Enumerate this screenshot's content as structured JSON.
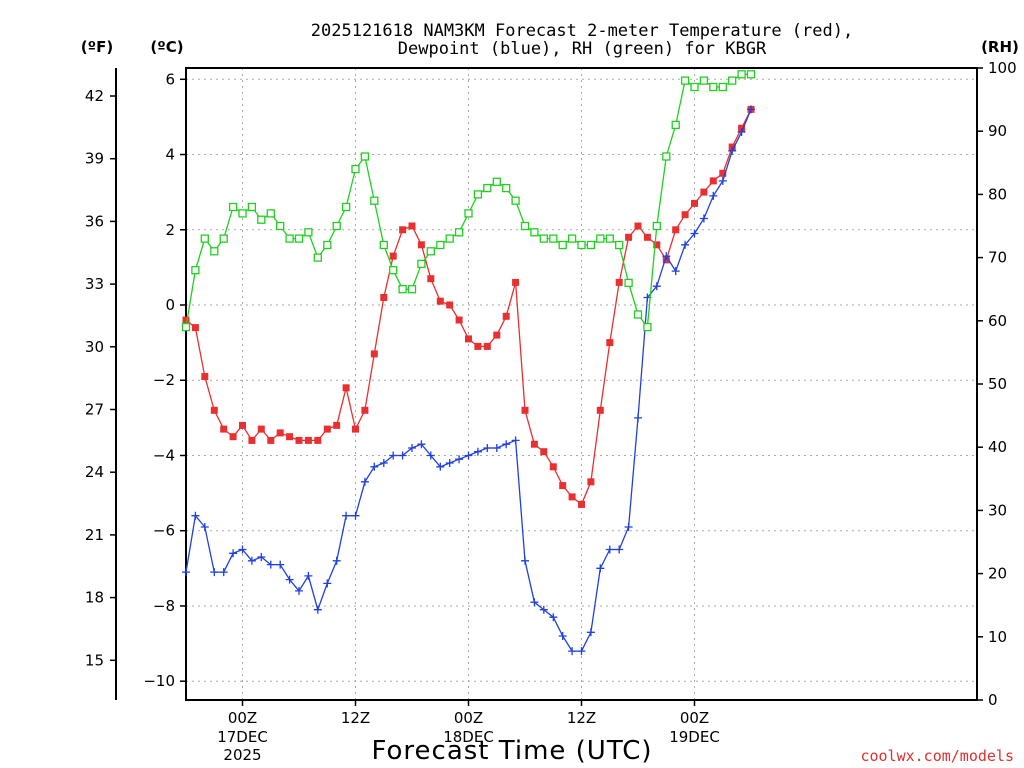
{
  "chart_data": {
    "type": "line",
    "title_line1": "2025121618 NAM3KM Forecast 2-meter Temperature (red),",
    "title_line2": "Dewpoint (blue), RH (green) for KBGR",
    "xlabel": "Forecast Time (UTC)",
    "credit": "coolwx.com/models",
    "units": {
      "fahrenheit": "(ºF)",
      "celsius": "(ºC)",
      "rh": "(RH)"
    },
    "forecast_hours": [
      0,
      84
    ],
    "celsius_axis": {
      "range": [
        -10.5,
        6.3
      ],
      "ticks": [
        "6",
        "4",
        "2",
        "0",
        "−2",
        "−4",
        "−6",
        "−8",
        "−10"
      ],
      "tick_values": [
        6,
        4,
        2,
        0,
        -2,
        -4,
        -6,
        -8,
        -10
      ]
    },
    "fahrenheit_axis": {
      "ticks": [
        "42",
        "39",
        "36",
        "33",
        "30",
        "27",
        "24",
        "21",
        "18",
        "15"
      ],
      "tick_values": [
        42,
        39,
        36,
        33,
        30,
        27,
        24,
        21,
        18,
        15
      ]
    },
    "rh_axis": {
      "range": [
        0,
        100
      ],
      "ticks": [
        "100",
        "90",
        "80",
        "70",
        "60",
        "50",
        "40",
        "30",
        "20",
        "10",
        "0"
      ],
      "tick_values": [
        100,
        90,
        80,
        70,
        60,
        50,
        40,
        30,
        20,
        10,
        0
      ]
    },
    "x_ticks": [
      {
        "hour": 6,
        "label1": "00Z",
        "label2": "17DEC",
        "label3": "2025"
      },
      {
        "hour": 18,
        "label1": "12Z",
        "label2": "",
        "label3": ""
      },
      {
        "hour": 30,
        "label1": "00Z",
        "label2": "18DEC",
        "label3": ""
      },
      {
        "hour": 42,
        "label1": "12Z",
        "label2": "",
        "label3": ""
      },
      {
        "hour": 54,
        "label1": "00Z",
        "label2": "19DEC",
        "label3": ""
      }
    ],
    "series": [
      {
        "name": "2-meter Temperature",
        "unit": "°C",
        "color": "#e83030",
        "marker": "filled-square",
        "x": [
          0,
          1,
          2,
          3,
          4,
          5,
          6,
          7,
          8,
          9,
          10,
          11,
          12,
          13,
          14,
          15,
          16,
          17,
          18,
          19,
          20,
          21,
          22,
          23,
          24,
          25,
          26,
          27,
          28,
          29,
          30,
          31,
          32,
          33,
          34,
          35,
          36,
          37,
          38,
          39,
          40,
          41,
          42,
          43,
          44,
          45,
          46,
          47,
          48,
          49,
          50,
          51,
          52,
          53,
          54,
          55,
          56,
          57,
          58,
          59,
          60
        ],
        "values": [
          -0.4,
          -0.6,
          -1.9,
          -2.8,
          -3.3,
          -3.5,
          -3.2,
          -3.6,
          -3.3,
          -3.6,
          -3.4,
          -3.5,
          -3.6,
          -3.6,
          -3.6,
          -3.3,
          -3.2,
          -2.2,
          -3.3,
          -2.8,
          -1.3,
          0.2,
          1.3,
          2.0,
          2.1,
          1.6,
          0.7,
          0.1,
          0.0,
          -0.4,
          -0.9,
          -1.1,
          -1.1,
          -0.8,
          -0.3,
          0.6,
          -2.8,
          -3.7,
          -3.9,
          -4.3,
          -4.8,
          -5.1,
          -5.3,
          -4.7,
          -2.8,
          -1.0,
          0.6,
          1.8,
          2.1,
          1.8,
          1.6,
          1.2,
          2.0,
          2.4,
          2.7,
          3.0,
          3.3,
          3.5,
          4.2,
          4.7,
          5.2
        ]
      },
      {
        "name": "Dewpoint",
        "unit": "°C",
        "color": "#2040e0",
        "marker": "plus",
        "x": [
          0,
          1,
          2,
          3,
          4,
          5,
          6,
          7,
          8,
          9,
          10,
          11,
          12,
          13,
          14,
          15,
          16,
          17,
          18,
          19,
          20,
          21,
          22,
          23,
          24,
          25,
          26,
          27,
          28,
          29,
          30,
          31,
          32,
          33,
          34,
          35,
          36,
          37,
          38,
          39,
          40,
          41,
          42,
          43,
          44,
          45,
          46,
          47,
          48,
          49,
          50,
          51,
          52,
          53,
          54,
          55,
          56,
          57,
          58,
          59,
          60
        ],
        "values": [
          -7.1,
          -5.6,
          -5.9,
          -7.1,
          -7.1,
          -6.6,
          -6.5,
          -6.8,
          -6.7,
          -6.9,
          -6.9,
          -7.3,
          -7.6,
          -7.2,
          -8.1,
          -7.4,
          -6.8,
          -5.6,
          -5.6,
          -4.7,
          -4.3,
          -4.2,
          -4.0,
          -4.0,
          -3.8,
          -3.7,
          -4.0,
          -4.3,
          -4.2,
          -4.1,
          -4.0,
          -3.9,
          -3.8,
          -3.8,
          -3.7,
          -3.6,
          -6.8,
          -7.9,
          -8.1,
          -8.3,
          -8.8,
          -9.2,
          -9.2,
          -8.7,
          -7.0,
          -6.5,
          -6.5,
          -5.9,
          -3.0,
          0.2,
          0.5,
          1.3,
          0.9,
          1.6,
          1.9,
          2.3,
          2.9,
          3.3,
          4.1,
          4.6,
          5.2
        ]
      },
      {
        "name": "RH",
        "unit": "%",
        "color": "#20d020",
        "marker": "open-square",
        "x": [
          0,
          1,
          2,
          3,
          4,
          5,
          6,
          7,
          8,
          9,
          10,
          11,
          12,
          13,
          14,
          15,
          16,
          17,
          18,
          19,
          20,
          21,
          22,
          23,
          24,
          25,
          26,
          27,
          28,
          29,
          30,
          31,
          32,
          33,
          34,
          35,
          36,
          37,
          38,
          39,
          40,
          41,
          42,
          43,
          44,
          45,
          46,
          47,
          48,
          49,
          50,
          51,
          52,
          53,
          54,
          55,
          56,
          57,
          58,
          59,
          60
        ],
        "values": [
          59,
          68,
          73,
          71,
          73,
          78,
          77,
          78,
          76,
          77,
          75,
          73,
          73,
          74,
          70,
          72,
          75,
          78,
          84,
          86,
          79,
          72,
          68,
          65,
          65,
          69,
          71,
          72,
          73,
          74,
          77,
          80,
          81,
          82,
          81,
          79,
          75,
          74,
          73,
          73,
          72,
          73,
          72,
          72,
          73,
          73,
          72,
          66,
          61,
          59,
          75,
          86,
          91,
          98,
          97,
          98,
          97,
          97,
          98,
          99,
          99
        ]
      }
    ]
  }
}
